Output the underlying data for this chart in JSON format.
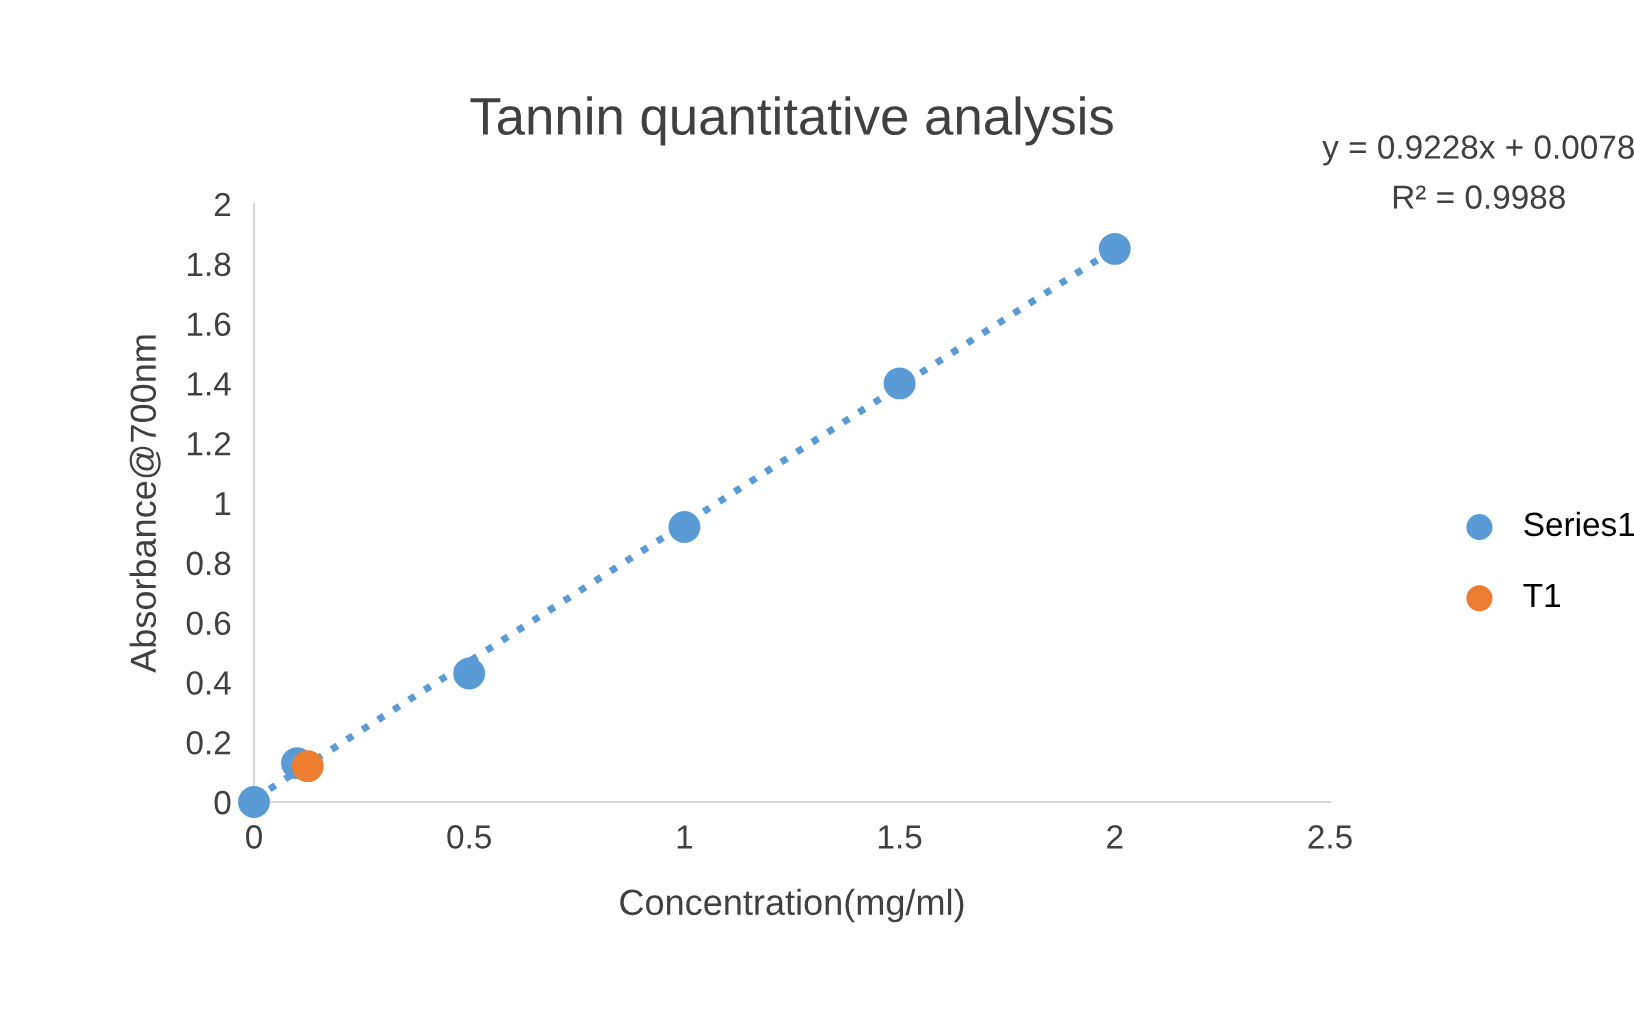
{
  "chart_data": {
    "type": "scatter",
    "title": "Tannin quantitative analysis",
    "xlabel": "Concentration(mg/ml)",
    "ylabel": "Absorbance@700nm",
    "xlim": [
      0,
      2.5
    ],
    "xticks": [
      0,
      0.5,
      1,
      1.5,
      2,
      2.5
    ],
    "ylim": [
      0,
      2
    ],
    "yticks": [
      0,
      {
        "value": 0.2,
        "label": "0.2"
      },
      {
        "value": 0.4,
        "label": "0.4"
      },
      {
        "value": 0.6,
        "label": "0.6"
      },
      {
        "value": 0.8,
        "label": "0.8"
      },
      1,
      {
        "value": 1.2,
        "label": "1.2"
      },
      {
        "value": 1.4,
        "label": "1.4"
      },
      {
        "value": 1.6,
        "label": "1.6"
      },
      {
        "value": 1.8,
        "label": "1.8"
      },
      2
    ],
    "grid": false,
    "legend": "right",
    "series": [
      {
        "name": "Series1",
        "color": "#5b9bd5",
        "marker": "circle",
        "x": [
          0,
          0.1,
          0.5,
          1,
          1.5,
          2
        ],
        "values": [
          0,
          0.13,
          0.43,
          0.92,
          1.4,
          1.85
        ]
      },
      {
        "name": "T1",
        "color": "#ed7d31",
        "marker": "circle",
        "x": [
          0.125
        ],
        "values": [
          0.12
        ]
      },
      {
        "type": "line",
        "color": "#5b9bd5",
        "line_style": "dotted",
        "x": [
          0,
          2
        ],
        "values": [
          0.01,
          1.85
        ]
      }
    ],
    "annotations": [
      "y = 0.9228x + 0.0078",
      "R² = 0.9988"
    ]
  }
}
